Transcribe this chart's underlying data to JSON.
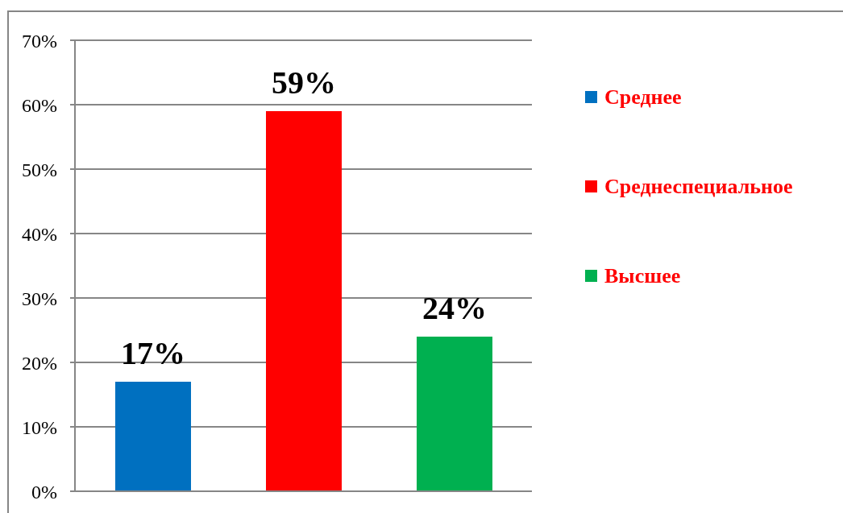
{
  "chart_data": {
    "type": "bar",
    "categories": [
      null
    ],
    "series": [
      {
        "name": "Среднее",
        "color": "#0070c0",
        "values": [
          17
        ],
        "value_labels": [
          "17%"
        ]
      },
      {
        "name": "Среднеспециальное",
        "color": "#ff0000",
        "values": [
          59
        ],
        "value_labels": [
          "59%"
        ]
      },
      {
        "name": "Высшее",
        "color": "#00b050",
        "values": [
          24
        ],
        "value_labels": [
          "24%"
        ]
      }
    ],
    "ylim": [
      0,
      70
    ],
    "yticks": [
      {
        "value": 0,
        "label": "0%"
      },
      {
        "value": 10,
        "label": "10%"
      },
      {
        "value": 20,
        "label": "20%"
      },
      {
        "value": 30,
        "label": "30%"
      },
      {
        "value": 40,
        "label": "40%"
      },
      {
        "value": 50,
        "label": "50%"
      },
      {
        "value": 60,
        "label": "60%"
      },
      {
        "value": 70,
        "label": "70%"
      }
    ],
    "grid": "y",
    "legend": "right"
  }
}
